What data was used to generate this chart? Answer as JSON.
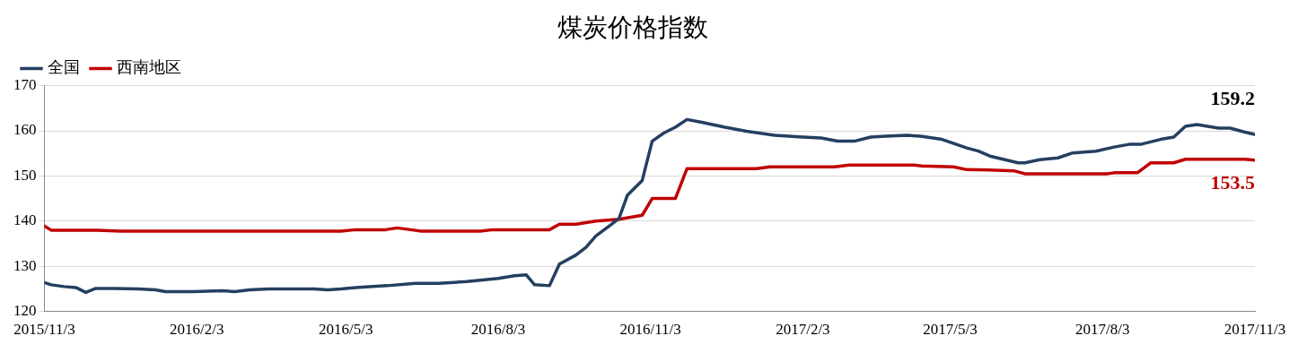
{
  "chart_data": {
    "type": "line",
    "title": "煤炭价格指数",
    "legend": "top left",
    "grid": "y",
    "ylim": [
      120,
      170
    ],
    "yticks": [
      120,
      130,
      140,
      150,
      160,
      170
    ],
    "xlim": [
      "2015-11-03",
      "2017-11-03"
    ],
    "xticks": [
      {
        "value": "2015-11-03",
        "label": "2015/11/3"
      },
      {
        "value": "2016-02-03",
        "label": "2016/2/3"
      },
      {
        "value": "2016-05-03",
        "label": "2016/5/3"
      },
      {
        "value": "2016-08-03",
        "label": "2016/8/3"
      },
      {
        "value": "2016-11-03",
        "label": "2016/11/3"
      },
      {
        "value": "2017-02-03",
        "label": "2017/2/3"
      },
      {
        "value": "2017-05-03",
        "label": "2017/5/3"
      },
      {
        "value": "2017-08-03",
        "label": "2017/8/3"
      },
      {
        "value": "2017-11-03",
        "label": "2017/11/3"
      }
    ],
    "series": [
      {
        "name": "全国",
        "color": "#243f60",
        "x": [
          "2015-11-03",
          "2015-11-07",
          "2015-11-15",
          "2015-11-22",
          "2015-11-28",
          "2015-12-04",
          "2015-12-16",
          "2015-12-30",
          "2016-01-09",
          "2016-01-15",
          "2016-02-01",
          "2016-02-18",
          "2016-02-26",
          "2016-03-06",
          "2016-03-17",
          "2016-04-14",
          "2016-04-22",
          "2016-04-30",
          "2016-05-09",
          "2016-05-17",
          "2016-05-28",
          "2016-06-14",
          "2016-06-28",
          "2016-07-15",
          "2016-07-26",
          "2016-08-03",
          "2016-08-13",
          "2016-08-20",
          "2016-08-25",
          "2016-09-03",
          "2016-09-09",
          "2016-09-19",
          "2016-09-25",
          "2016-10-01",
          "2016-10-09",
          "2016-10-15",
          "2016-10-20",
          "2016-10-29",
          "2016-11-04",
          "2016-11-11",
          "2016-11-18",
          "2016-11-25",
          "2016-12-04",
          "2016-12-18",
          "2016-12-31",
          "2017-01-17",
          "2017-02-03",
          "2017-02-14",
          "2017-02-24",
          "2017-03-06",
          "2017-03-16",
          "2017-03-25",
          "2017-04-07",
          "2017-04-15",
          "2017-04-28",
          "2017-05-13",
          "2017-05-20",
          "2017-05-27",
          "2017-06-13",
          "2017-06-17",
          "2017-06-26",
          "2017-07-07",
          "2017-07-16",
          "2017-07-30",
          "2017-08-10",
          "2017-08-19",
          "2017-08-26",
          "2017-09-07",
          "2017-09-15",
          "2017-09-22",
          "2017-09-29",
          "2017-10-12",
          "2017-10-19",
          "2017-10-28",
          "2017-11-03"
        ],
        "values": [
          126.4,
          125.9,
          125.5,
          125.3,
          124.2,
          125.1,
          125.1,
          125.0,
          124.8,
          124.4,
          124.4,
          124.6,
          124.4,
          124.8,
          125.0,
          125.0,
          124.8,
          125.0,
          125.3,
          125.5,
          125.7,
          126.2,
          126.2,
          126.6,
          127.0,
          127.3,
          127.9,
          128.1,
          125.9,
          125.7,
          130.5,
          132.5,
          134.2,
          136.7,
          138.9,
          140.6,
          145.7,
          149.0,
          157.7,
          159.5,
          160.8,
          162.5,
          161.9,
          160.8,
          159.9,
          159.0,
          158.6,
          158.4,
          157.7,
          157.7,
          158.6,
          158.8,
          159.0,
          158.8,
          158.1,
          156.2,
          155.5,
          154.4,
          152.9,
          152.9,
          153.6,
          154.0,
          155.1,
          155.5,
          156.4,
          157.0,
          157.0,
          158.1,
          158.6,
          161.0,
          161.4,
          160.6,
          160.6,
          159.7,
          159.2
        ]
      },
      {
        "name": "西南地区",
        "color": "#c00000",
        "x": [
          "2015-11-03",
          "2015-11-07",
          "2015-12-05",
          "2015-12-19",
          "2016-04-30",
          "2016-05-09",
          "2016-05-27",
          "2016-06-03",
          "2016-06-17",
          "2016-07-23",
          "2016-07-31",
          "2016-09-03",
          "2016-09-09",
          "2016-09-19",
          "2016-10-01",
          "2016-10-15",
          "2016-10-29",
          "2016-11-04",
          "2016-11-18",
          "2016-11-25",
          "2017-01-06",
          "2017-01-14",
          "2017-02-22",
          "2017-03-03",
          "2017-04-11",
          "2017-04-16",
          "2017-05-05",
          "2017-05-13",
          "2017-05-27",
          "2017-06-11",
          "2017-06-17",
          "2017-08-06",
          "2017-08-10",
          "2017-08-24",
          "2017-09-01",
          "2017-09-15",
          "2017-09-22",
          "2017-10-28",
          "2017-11-03"
        ],
        "values": [
          138.9,
          138.0,
          138.0,
          137.8,
          137.8,
          138.1,
          138.1,
          138.5,
          137.8,
          137.8,
          138.1,
          138.1,
          139.3,
          139.3,
          140.0,
          140.4,
          141.3,
          145.0,
          145.0,
          151.6,
          151.6,
          152.0,
          152.0,
          152.4,
          152.4,
          152.2,
          152.0,
          151.4,
          151.3,
          151.1,
          150.5,
          150.5,
          150.7,
          150.7,
          152.9,
          152.9,
          153.7,
          153.7,
          153.5
        ]
      }
    ],
    "annotations": [
      {
        "text": "159.2",
        "x": "2017-11-03",
        "y": 159.2
      },
      {
        "text": "153.5",
        "x": "2017-11-03",
        "y": 153.5
      }
    ]
  }
}
